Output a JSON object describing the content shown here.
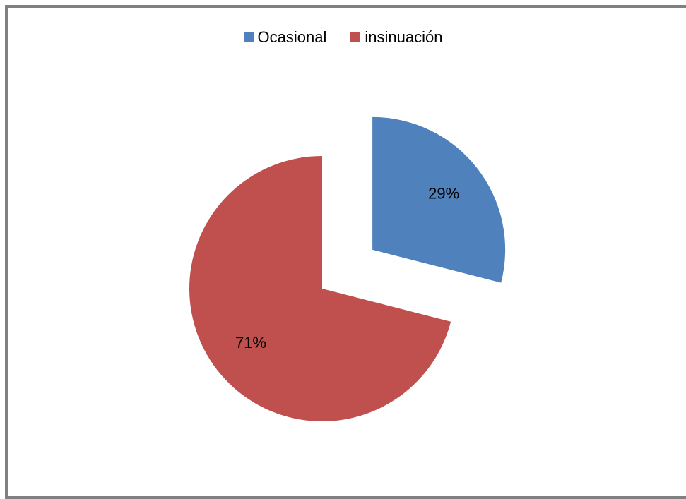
{
  "chart_data": {
    "type": "pie",
    "categories": [
      "Ocasional",
      "insinuación"
    ],
    "values": [
      29,
      71
    ],
    "data_labels": [
      "29%",
      "71%"
    ],
    "colors": [
      "#4f81bd",
      "#c0504d"
    ],
    "exploded": [
      true,
      false
    ],
    "legend_position": "top-center"
  }
}
